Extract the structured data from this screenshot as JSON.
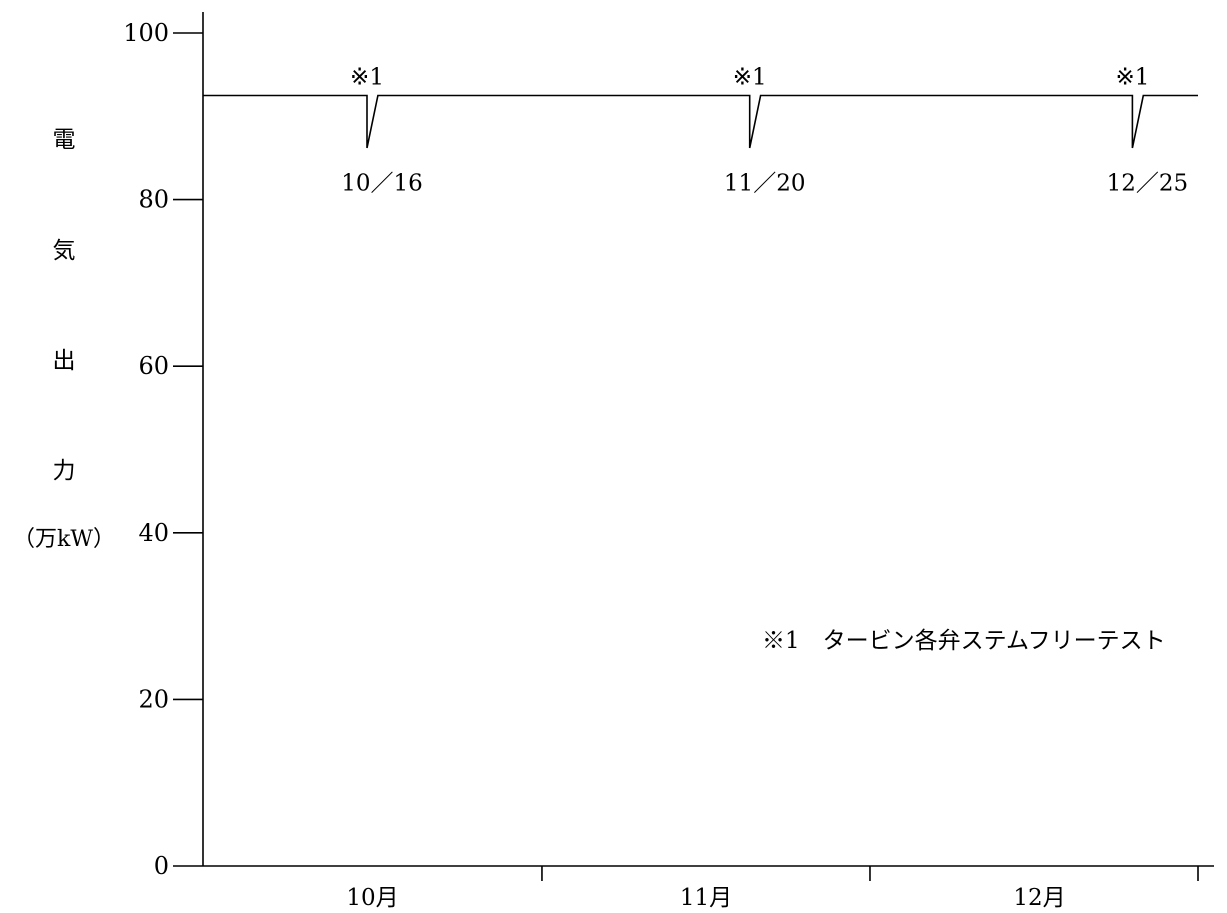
{
  "chart_data": {
    "type": "line",
    "title": "",
    "ylabel_chars": [
      "電",
      "気",
      "出",
      "力"
    ],
    "ylabel_unit": "（万kW）",
    "ylim": [
      0,
      100
    ],
    "yticks": [
      0,
      20,
      40,
      60,
      80,
      100
    ],
    "xlim": [
      "2023-10-01",
      "2023-12-31"
    ],
    "month_labels": [
      "10月",
      "11月",
      "12月"
    ],
    "grid": false,
    "legend": "none",
    "series": [
      {
        "values": [
          {
            "x": "2023-10-01",
            "y": 92.5
          },
          {
            "x": "2023-10-16",
            "y": 92.5
          },
          {
            "x": "2023-10-16",
            "y": 86.2
          },
          {
            "x": "2023-10-17",
            "y": 92.5
          },
          {
            "x": "2023-11-20",
            "y": 92.5
          },
          {
            "x": "2023-11-20",
            "y": 86.2
          },
          {
            "x": "2023-11-21",
            "y": 92.5
          },
          {
            "x": "2023-12-25",
            "y": 92.5
          },
          {
            "x": "2023-12-25",
            "y": 86.2
          },
          {
            "x": "2023-12-26",
            "y": 92.5
          },
          {
            "x": "2023-12-31",
            "y": 92.5
          }
        ]
      }
    ],
    "annotations": [
      {
        "x": "2023-10-16",
        "marker": "※1",
        "label": "10／16"
      },
      {
        "x": "2023-11-20",
        "marker": "※1",
        "label": "11／20"
      },
      {
        "x": "2023-12-25",
        "marker": "※1",
        "label": "12／25"
      }
    ],
    "note": "※1　タービン各弁ステムフリーテスト"
  }
}
